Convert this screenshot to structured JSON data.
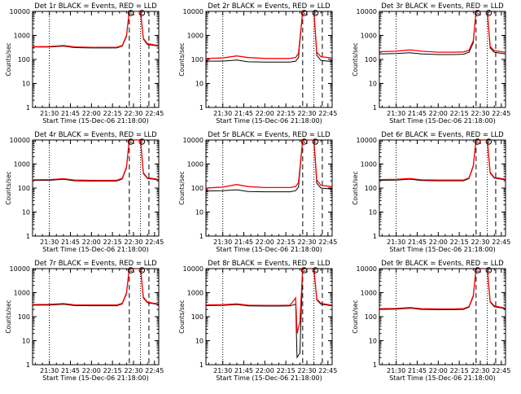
{
  "figure": {
    "y_tick_labels": [
      "1",
      "10",
      "100",
      "1000",
      "10000"
    ],
    "x_tick_labels": [
      "21:30",
      "21:45",
      "22:00",
      "22:15",
      "22:30",
      "22:45"
    ],
    "colors": {
      "events": "#000000",
      "lld": "#ff0000"
    }
  },
  "chart_data": [
    {
      "type": "line",
      "title": "Det 1r BLACK = Events, RED = LLD",
      "xlabel": "Start Time (15-Dec-06 21:18:00)",
      "ylabel": "Counts/sec",
      "ylim": [
        1,
        10000
      ],
      "log_y": true,
      "x_ticks": [
        "21:30",
        "21:45",
        "22:00",
        "22:15",
        "22:30",
        "22:45"
      ],
      "dotted_vlines": [
        "21:30",
        "22:35"
      ],
      "dashed_vlines": [
        "22:27",
        "22:41"
      ],
      "markers": [
        {
          "symbol": "S",
          "x": "22:28"
        },
        {
          "symbol": "E",
          "x": "22:36"
        }
      ],
      "series": [
        {
          "name": "Events",
          "color": "#000000",
          "x": [
            "21:18",
            "21:30",
            "21:40",
            "21:48",
            "22:00",
            "22:10",
            "22:18",
            "22:22",
            "22:25",
            "22:27",
            "22:35",
            "22:37",
            "22:40",
            "22:45",
            "22:48"
          ],
          "y": [
            330,
            330,
            360,
            310,
            300,
            300,
            300,
            360,
            900,
            10000,
            10000,
            700,
            420,
            380,
            360
          ]
        },
        {
          "name": "LLD",
          "color": "#ff0000",
          "x": [
            "21:18",
            "21:30",
            "21:40",
            "21:48",
            "22:00",
            "22:10",
            "22:18",
            "22:22",
            "22:25",
            "22:27",
            "22:35",
            "22:37",
            "22:40",
            "22:45",
            "22:48"
          ],
          "y": [
            340,
            345,
            380,
            330,
            320,
            320,
            320,
            380,
            1000,
            10000,
            10000,
            750,
            450,
            400,
            380
          ]
        }
      ]
    },
    {
      "type": "line",
      "title": "Det 2r BLACK = Events, RED = LLD",
      "xlabel": "Start Time (15-Dec-06 21:18:00)",
      "ylabel": "Counts/sec",
      "ylim": [
        1,
        10000
      ],
      "log_y": true,
      "x_ticks": [
        "21:30",
        "21:45",
        "22:00",
        "22:15",
        "22:30",
        "22:45"
      ],
      "dotted_vlines": [
        "21:30",
        "22:35"
      ],
      "dashed_vlines": [
        "22:27",
        "22:41"
      ],
      "markers": [
        {
          "symbol": "S",
          "x": "22:28"
        },
        {
          "symbol": "E",
          "x": "22:36"
        }
      ],
      "series": [
        {
          "name": "Events",
          "color": "#000000",
          "x": [
            "21:18",
            "21:30",
            "21:40",
            "21:48",
            "22:00",
            "22:10",
            "22:18",
            "22:22",
            "22:24",
            "22:27",
            "22:35",
            "22:37",
            "22:40",
            "22:45",
            "22:48"
          ],
          "y": [
            85,
            85,
            95,
            80,
            78,
            78,
            78,
            85,
            120,
            10000,
            10000,
            150,
            90,
            85,
            82
          ]
        },
        {
          "name": "LLD",
          "color": "#ff0000",
          "x": [
            "21:18",
            "21:30",
            "21:40",
            "21:48",
            "22:00",
            "22:10",
            "22:18",
            "22:22",
            "22:24",
            "22:27",
            "22:35",
            "22:37",
            "22:40",
            "22:45",
            "22:48"
          ],
          "y": [
            110,
            115,
            140,
            120,
            110,
            110,
            110,
            120,
            180,
            10000,
            10000,
            200,
            130,
            120,
            115
          ]
        }
      ]
    },
    {
      "type": "line",
      "title": "Det 3r BLACK = Events, RED = LLD",
      "xlabel": "Start Time (15-Dec-06 21:18:00)",
      "ylabel": "Counts/sec",
      "ylim": [
        1,
        10000
      ],
      "log_y": true,
      "x_ticks": [
        "21:30",
        "21:45",
        "22:00",
        "22:15",
        "22:30",
        "22:45"
      ],
      "dotted_vlines": [
        "21:30",
        "22:35"
      ],
      "dashed_vlines": [
        "22:27",
        "22:41"
      ],
      "markers": [
        {
          "symbol": "S",
          "x": "22:28"
        },
        {
          "symbol": "E",
          "x": "22:36"
        }
      ],
      "series": [
        {
          "name": "Events",
          "color": "#000000",
          "x": [
            "21:18",
            "21:30",
            "21:40",
            "21:48",
            "22:00",
            "22:10",
            "22:18",
            "22:22",
            "22:25",
            "22:27",
            "22:35",
            "22:37",
            "22:40",
            "22:45",
            "22:48"
          ],
          "y": [
            170,
            175,
            190,
            170,
            160,
            160,
            165,
            200,
            500,
            10000,
            10000,
            300,
            200,
            180,
            170
          ]
        },
        {
          "name": "LLD",
          "color": "#ff0000",
          "x": [
            "21:18",
            "21:30",
            "21:40",
            "21:48",
            "22:00",
            "22:10",
            "22:18",
            "22:22",
            "22:25",
            "22:27",
            "22:35",
            "22:37",
            "22:40",
            "22:45",
            "22:48"
          ],
          "y": [
            210,
            220,
            250,
            220,
            200,
            200,
            205,
            240,
            600,
            10000,
            10000,
            350,
            230,
            210,
            200
          ]
        }
      ]
    },
    {
      "type": "line",
      "title": "Det 4r BLACK = Events, RED = LLD",
      "xlabel": "Start Time (15-Dec-06 21:18:00)",
      "ylabel": "Counts/sec",
      "ylim": [
        1,
        10000
      ],
      "log_y": true,
      "x_ticks": [
        "21:30",
        "21:45",
        "22:00",
        "22:15",
        "22:30",
        "22:45"
      ],
      "dotted_vlines": [
        "21:30",
        "22:35"
      ],
      "dashed_vlines": [
        "22:27",
        "22:41"
      ],
      "markers": [
        {
          "symbol": "S",
          "x": "22:28"
        },
        {
          "symbol": "E",
          "x": "22:36"
        }
      ],
      "series": [
        {
          "name": "Events",
          "color": "#000000",
          "x": [
            "21:18",
            "21:30",
            "21:40",
            "21:48",
            "22:00",
            "22:10",
            "22:18",
            "22:22",
            "22:25",
            "22:27",
            "22:35",
            "22:37",
            "22:40",
            "22:45",
            "22:48"
          ],
          "y": [
            210,
            210,
            230,
            200,
            195,
            195,
            195,
            240,
            700,
            10000,
            10000,
            400,
            250,
            230,
            215
          ]
        },
        {
          "name": "LLD",
          "color": "#ff0000",
          "x": [
            "21:18",
            "21:30",
            "21:40",
            "21:48",
            "22:00",
            "22:10",
            "22:18",
            "22:22",
            "22:25",
            "22:27",
            "22:35",
            "22:37",
            "22:40",
            "22:45",
            "22:48"
          ],
          "y": [
            220,
            225,
            245,
            215,
            210,
            210,
            210,
            255,
            760,
            10000,
            10000,
            430,
            265,
            245,
            225
          ]
        }
      ]
    },
    {
      "type": "line",
      "title": "Det 5r BLACK = Events, RED = LLD",
      "xlabel": "Start Time (15-Dec-06 21:18:00)",
      "ylabel": "Counts/sec",
      "ylim": [
        1,
        10000
      ],
      "log_y": true,
      "x_ticks": [
        "21:30",
        "21:45",
        "22:00",
        "22:15",
        "22:30",
        "22:45"
      ],
      "dotted_vlines": [
        "21:30",
        "22:35"
      ],
      "dashed_vlines": [
        "22:27",
        "22:41"
      ],
      "markers": [
        {
          "symbol": "S",
          "x": "22:28"
        },
        {
          "symbol": "E",
          "x": "22:36"
        }
      ],
      "series": [
        {
          "name": "Events",
          "color": "#000000",
          "x": [
            "21:18",
            "21:30",
            "21:40",
            "21:48",
            "22:00",
            "22:10",
            "22:18",
            "22:22",
            "22:24",
            "22:27",
            "22:35",
            "22:37",
            "22:40",
            "22:45",
            "22:48"
          ],
          "y": [
            75,
            78,
            85,
            72,
            70,
            70,
            70,
            78,
            110,
            10000,
            10000,
            160,
            100,
            95,
            90
          ]
        },
        {
          "name": "LLD",
          "color": "#ff0000",
          "x": [
            "21:18",
            "21:30",
            "21:40",
            "21:48",
            "22:00",
            "22:10",
            "22:18",
            "22:22",
            "22:24",
            "22:27",
            "22:35",
            "22:37",
            "22:40",
            "22:45",
            "22:48"
          ],
          "y": [
            100,
            110,
            140,
            115,
            105,
            105,
            105,
            115,
            170,
            10000,
            10000,
            220,
            130,
            120,
            115
          ]
        }
      ]
    },
    {
      "type": "line",
      "title": "Det 6r BLACK = Events, RED = LLD",
      "xlabel": "Start Time (15-Dec-06 21:18:00)",
      "ylabel": "Counts/sec",
      "ylim": [
        1,
        10000
      ],
      "log_y": true,
      "x_ticks": [
        "21:30",
        "21:45",
        "22:00",
        "22:15",
        "22:30",
        "22:45"
      ],
      "dotted_vlines": [
        "21:30",
        "22:35"
      ],
      "dashed_vlines": [
        "22:27",
        "22:41"
      ],
      "markers": [
        {
          "symbol": "S",
          "x": "22:28"
        },
        {
          "symbol": "E",
          "x": "22:36"
        }
      ],
      "series": [
        {
          "name": "Events",
          "color": "#000000",
          "x": [
            "21:18",
            "21:30",
            "21:40",
            "21:48",
            "22:00",
            "22:10",
            "22:18",
            "22:22",
            "22:25",
            "22:27",
            "22:35",
            "22:37",
            "22:40",
            "22:45",
            "22:48"
          ],
          "y": [
            210,
            215,
            235,
            205,
            200,
            200,
            200,
            250,
            800,
            10000,
            10000,
            420,
            260,
            235,
            220
          ]
        },
        {
          "name": "LLD",
          "color": "#ff0000",
          "x": [
            "21:18",
            "21:30",
            "21:40",
            "21:48",
            "22:00",
            "22:10",
            "22:18",
            "22:22",
            "22:25",
            "22:27",
            "22:35",
            "22:37",
            "22:40",
            "22:45",
            "22:48"
          ],
          "y": [
            225,
            230,
            250,
            220,
            215,
            215,
            215,
            265,
            860,
            10000,
            10000,
            450,
            275,
            250,
            235
          ]
        }
      ]
    },
    {
      "type": "line",
      "title": "Det 7r BLACK = Events, RED = LLD",
      "xlabel": "Start Time (15-Dec-06 21:18:00)",
      "ylabel": "Counts/sec",
      "ylim": [
        1,
        10000
      ],
      "log_y": true,
      "x_ticks": [
        "21:30",
        "21:45",
        "22:00",
        "22:15",
        "22:30",
        "22:45"
      ],
      "dotted_vlines": [
        "21:30",
        "22:35"
      ],
      "dashed_vlines": [
        "22:27",
        "22:41"
      ],
      "markers": [
        {
          "symbol": "S",
          "x": "22:28"
        },
        {
          "symbol": "E",
          "x": "22:36"
        }
      ],
      "series": [
        {
          "name": "Events",
          "color": "#000000",
          "x": [
            "21:18",
            "21:30",
            "21:40",
            "21:48",
            "22:00",
            "22:10",
            "22:18",
            "22:22",
            "22:25",
            "22:27",
            "22:35",
            "22:37",
            "22:40",
            "22:45",
            "22:48"
          ],
          "y": [
            300,
            305,
            330,
            290,
            285,
            285,
            285,
            340,
            900,
            10000,
            10000,
            600,
            380,
            340,
            320
          ]
        },
        {
          "name": "LLD",
          "color": "#ff0000",
          "x": [
            "21:18",
            "21:30",
            "21:40",
            "21:48",
            "22:00",
            "22:10",
            "22:18",
            "22:22",
            "22:25",
            "22:27",
            "22:35",
            "22:37",
            "22:40",
            "22:45",
            "22:48"
          ],
          "y": [
            320,
            325,
            350,
            310,
            305,
            305,
            305,
            360,
            980,
            10000,
            10000,
            650,
            400,
            360,
            340
          ]
        }
      ]
    },
    {
      "type": "line",
      "title": "Det 8r BLACK = Events, RED = LLD",
      "xlabel": "Start Time (15-Dec-06 21:18:00)",
      "ylabel": "Counts/sec",
      "ylim": [
        1,
        10000
      ],
      "log_y": true,
      "x_ticks": [
        "21:30",
        "21:45",
        "22:00",
        "22:15",
        "22:30",
        "22:45"
      ],
      "dotted_vlines": [
        "21:30",
        "22:35"
      ],
      "dashed_vlines": [
        "22:27",
        "22:41"
      ],
      "markers": [
        {
          "symbol": "S",
          "x": "22:28"
        },
        {
          "symbol": "E",
          "x": "22:36"
        }
      ],
      "series": [
        {
          "name": "Events",
          "color": "#000000",
          "x": [
            "21:18",
            "21:30",
            "21:40",
            "21:48",
            "22:00",
            "22:10",
            "22:18",
            "22:22",
            "22:23",
            "22:25",
            "22:27",
            "22:35",
            "22:37",
            "22:40",
            "22:45",
            "22:48"
          ],
          "y": [
            290,
            295,
            320,
            280,
            275,
            275,
            280,
            330,
            2,
            3,
            10000,
            10000,
            500,
            330,
            300,
            280
          ]
        },
        {
          "name": "LLD",
          "color": "#ff0000",
          "x": [
            "21:18",
            "21:30",
            "21:40",
            "21:48",
            "22:00",
            "22:10",
            "22:18",
            "22:22",
            "22:23",
            "22:25",
            "22:27",
            "22:35",
            "22:37",
            "22:40",
            "22:45",
            "22:48"
          ],
          "y": [
            310,
            315,
            340,
            300,
            295,
            295,
            300,
            600,
            20,
            60,
            10000,
            10000,
            550,
            360,
            320,
            300
          ]
        }
      ]
    },
    {
      "type": "line",
      "title": "Det 9r BLACK = Events, RED = LLD",
      "xlabel": "Start Time (15-Dec-06 21:18:00)",
      "ylabel": "Counts/sec",
      "ylim": [
        1,
        10000
      ],
      "log_y": true,
      "x_ticks": [
        "21:30",
        "21:45",
        "22:00",
        "22:15",
        "22:30",
        "22:45"
      ],
      "dotted_vlines": [
        "21:30",
        "22:35"
      ],
      "dashed_vlines": [
        "22:27",
        "22:41"
      ],
      "markers": [
        {
          "symbol": "S",
          "x": "22:28"
        },
        {
          "symbol": "E",
          "x": "22:36"
        }
      ],
      "series": [
        {
          "name": "Events",
          "color": "#000000",
          "x": [
            "21:18",
            "21:30",
            "21:40",
            "21:48",
            "22:00",
            "22:10",
            "22:18",
            "22:22",
            "22:25",
            "22:27",
            "22:35",
            "22:37",
            "22:40",
            "22:45",
            "22:48"
          ],
          "y": [
            200,
            205,
            225,
            200,
            195,
            195,
            200,
            250,
            700,
            10000,
            10000,
            400,
            260,
            230,
            210
          ]
        },
        {
          "name": "LLD",
          "color": "#ff0000",
          "x": [
            "21:18",
            "21:30",
            "21:40",
            "21:48",
            "22:00",
            "22:10",
            "22:18",
            "22:22",
            "22:25",
            "22:27",
            "22:35",
            "22:37",
            "22:40",
            "22:45",
            "22:48"
          ],
          "y": [
            215,
            220,
            240,
            215,
            210,
            210,
            215,
            265,
            760,
            10000,
            10000,
            430,
            280,
            245,
            225
          ]
        }
      ]
    }
  ]
}
